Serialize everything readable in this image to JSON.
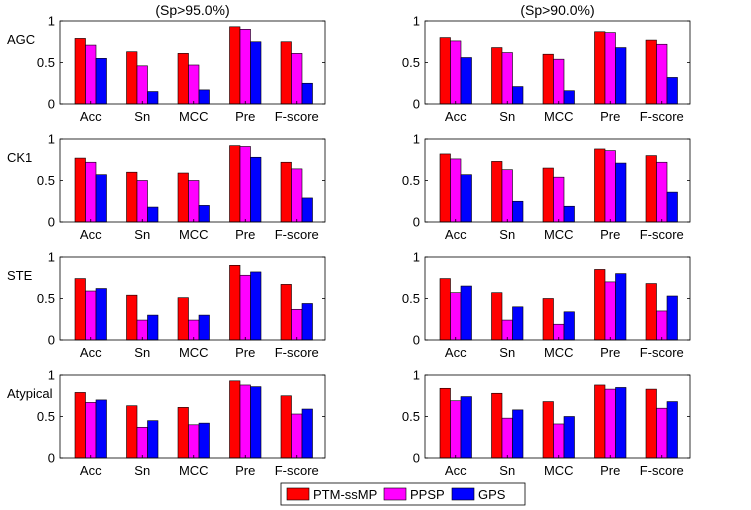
{
  "figure": {
    "column_titles": [
      "(Sp>95.0%)",
      "(Sp>90.0%)"
    ],
    "row_labels": [
      "AGC",
      "CK1",
      "STE",
      "Atypical"
    ]
  },
  "legend": {
    "position": "bottom-center",
    "entries": [
      {
        "name": "PTM-ssMP",
        "color": "#ff0000"
      },
      {
        "name": "PPSP",
        "color": "#ff00ff"
      },
      {
        "name": "GPS",
        "color": "#0000ff"
      }
    ]
  },
  "chart_data": [
    {
      "type": "bar",
      "title": "(Sp>95.0%)",
      "ylabel": "AGC",
      "xlabel": "",
      "ylim": [
        0,
        1
      ],
      "yticks": [
        "0",
        "0.5",
        "1"
      ],
      "grid": false,
      "categories": [
        "Acc",
        "Sn",
        "MCC",
        "Pre",
        "F-score"
      ],
      "series": [
        {
          "name": "PTM-ssMP",
          "values": [
            0.79,
            0.63,
            0.61,
            0.93,
            0.75
          ]
        },
        {
          "name": "PPSP",
          "values": [
            0.71,
            0.46,
            0.47,
            0.9,
            0.61
          ]
        },
        {
          "name": "GPS",
          "values": [
            0.55,
            0.15,
            0.17,
            0.75,
            0.25
          ]
        }
      ]
    },
    {
      "type": "bar",
      "title": "(Sp>90.0%)",
      "ylabel": "",
      "xlabel": "",
      "ylim": [
        0,
        1
      ],
      "yticks": [
        "0",
        "0.5",
        "1"
      ],
      "grid": false,
      "categories": [
        "Acc",
        "Sn",
        "MCC",
        "Pre",
        "F-score"
      ],
      "series": [
        {
          "name": "PTM-ssMP",
          "values": [
            0.8,
            0.68,
            0.6,
            0.87,
            0.77
          ]
        },
        {
          "name": "PPSP",
          "values": [
            0.76,
            0.62,
            0.54,
            0.86,
            0.72
          ]
        },
        {
          "name": "GPS",
          "values": [
            0.56,
            0.21,
            0.16,
            0.68,
            0.32
          ]
        }
      ]
    },
    {
      "type": "bar",
      "title": "",
      "ylabel": "CK1",
      "xlabel": "",
      "ylim": [
        0,
        1
      ],
      "yticks": [
        "0",
        "0.5",
        "1"
      ],
      "grid": false,
      "categories": [
        "Acc",
        "Sn",
        "MCC",
        "Pre",
        "F-score"
      ],
      "series": [
        {
          "name": "PTM-ssMP",
          "values": [
            0.77,
            0.6,
            0.59,
            0.92,
            0.72
          ]
        },
        {
          "name": "PPSP",
          "values": [
            0.72,
            0.5,
            0.5,
            0.91,
            0.64
          ]
        },
        {
          "name": "GPS",
          "values": [
            0.57,
            0.18,
            0.2,
            0.78,
            0.29
          ]
        }
      ]
    },
    {
      "type": "bar",
      "title": "",
      "ylabel": "",
      "xlabel": "",
      "ylim": [
        0,
        1
      ],
      "yticks": [
        "0",
        "0.5",
        "1"
      ],
      "grid": false,
      "categories": [
        "Acc",
        "Sn",
        "MCC",
        "Pre",
        "F-score"
      ],
      "series": [
        {
          "name": "PTM-ssMP",
          "values": [
            0.82,
            0.73,
            0.65,
            0.88,
            0.8
          ]
        },
        {
          "name": "PPSP",
          "values": [
            0.76,
            0.63,
            0.54,
            0.86,
            0.72
          ]
        },
        {
          "name": "GPS",
          "values": [
            0.57,
            0.25,
            0.19,
            0.71,
            0.36
          ]
        }
      ]
    },
    {
      "type": "bar",
      "title": "",
      "ylabel": "STE",
      "xlabel": "",
      "ylim": [
        0,
        1
      ],
      "yticks": [
        "0",
        "0.5",
        "1"
      ],
      "grid": false,
      "categories": [
        "Acc",
        "Sn",
        "MCC",
        "Pre",
        "F-score"
      ],
      "series": [
        {
          "name": "PTM-ssMP",
          "values": [
            0.74,
            0.54,
            0.51,
            0.9,
            0.67
          ]
        },
        {
          "name": "PPSP",
          "values": [
            0.59,
            0.24,
            0.24,
            0.78,
            0.37
          ]
        },
        {
          "name": "GPS",
          "values": [
            0.62,
            0.3,
            0.3,
            0.82,
            0.44
          ]
        }
      ]
    },
    {
      "type": "bar",
      "title": "",
      "ylabel": "",
      "xlabel": "",
      "ylim": [
        0,
        1
      ],
      "yticks": [
        "0",
        "0.5",
        "1"
      ],
      "grid": false,
      "categories": [
        "Acc",
        "Sn",
        "MCC",
        "Pre",
        "F-score"
      ],
      "series": [
        {
          "name": "PTM-ssMP",
          "values": [
            0.74,
            0.57,
            0.5,
            0.85,
            0.68
          ]
        },
        {
          "name": "PPSP",
          "values": [
            0.57,
            0.24,
            0.19,
            0.7,
            0.35
          ]
        },
        {
          "name": "GPS",
          "values": [
            0.65,
            0.4,
            0.34,
            0.8,
            0.53
          ]
        }
      ]
    },
    {
      "type": "bar",
      "title": "",
      "ylabel": "Atypical",
      "xlabel": "",
      "ylim": [
        0,
        1
      ],
      "yticks": [
        "0",
        "0.5",
        "1"
      ],
      "grid": false,
      "categories": [
        "Acc",
        "Sn",
        "MCC",
        "Pre",
        "F-score"
      ],
      "series": [
        {
          "name": "PTM-ssMP",
          "values": [
            0.79,
            0.63,
            0.61,
            0.93,
            0.75
          ]
        },
        {
          "name": "PPSP",
          "values": [
            0.67,
            0.37,
            0.4,
            0.88,
            0.53
          ]
        },
        {
          "name": "GPS",
          "values": [
            0.7,
            0.45,
            0.42,
            0.86,
            0.59
          ]
        }
      ]
    },
    {
      "type": "bar",
      "title": "",
      "ylabel": "",
      "xlabel": "",
      "ylim": [
        0,
        1
      ],
      "yticks": [
        "0",
        "0.5",
        "1"
      ],
      "grid": false,
      "categories": [
        "Acc",
        "Sn",
        "MCC",
        "Pre",
        "F-score"
      ],
      "series": [
        {
          "name": "PTM-ssMP",
          "values": [
            0.84,
            0.78,
            0.68,
            0.88,
            0.83
          ]
        },
        {
          "name": "PPSP",
          "values": [
            0.69,
            0.48,
            0.41,
            0.83,
            0.6
          ]
        },
        {
          "name": "GPS",
          "values": [
            0.74,
            0.58,
            0.5,
            0.85,
            0.68
          ]
        }
      ]
    }
  ]
}
